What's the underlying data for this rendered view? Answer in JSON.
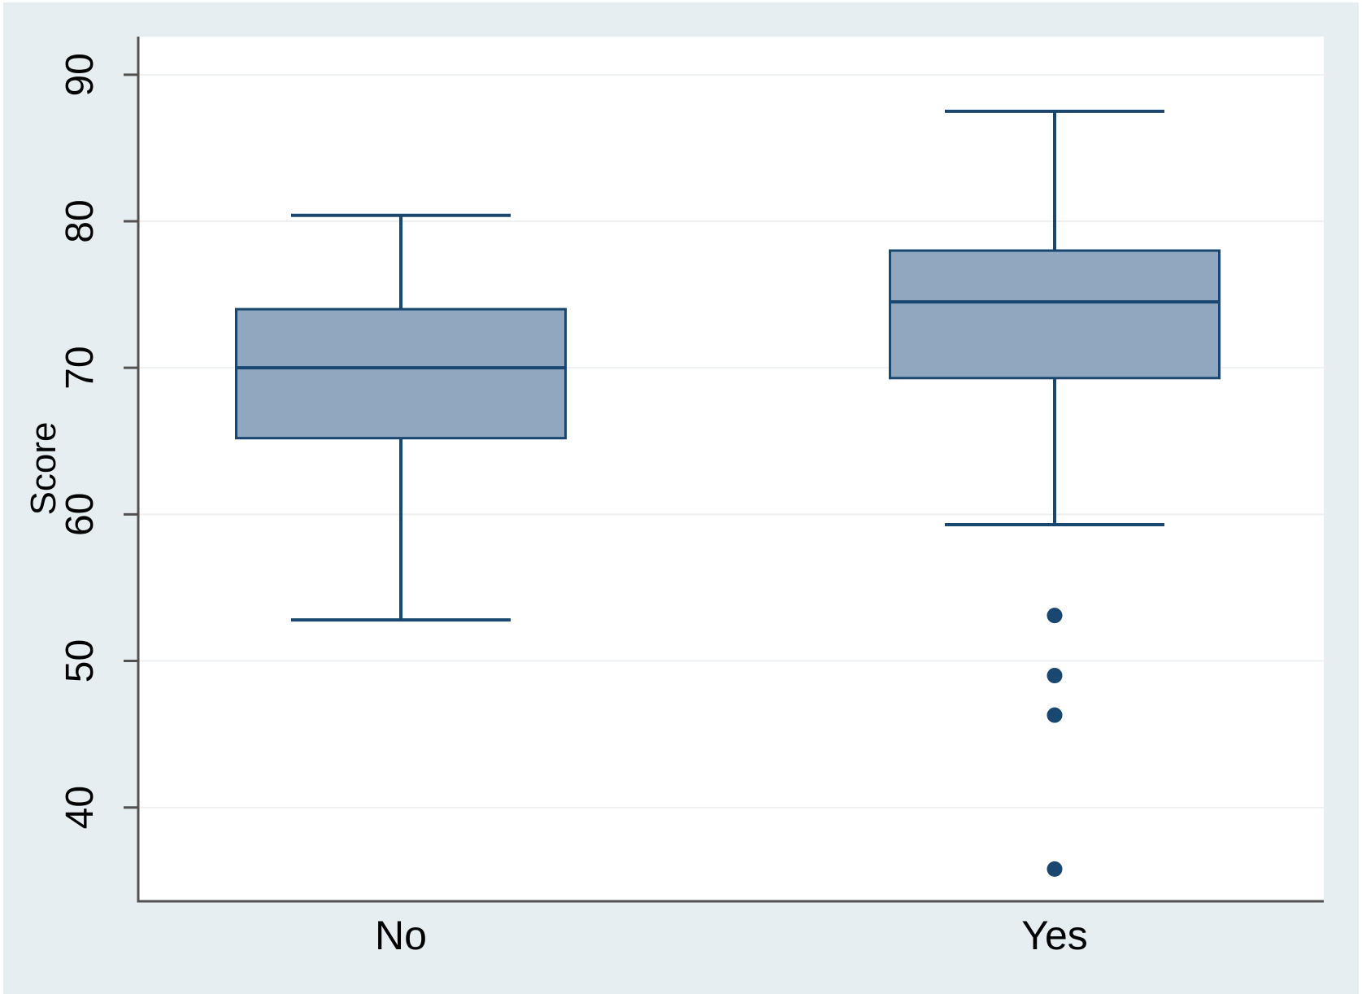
{
  "figure": {
    "bg_color": "#e7eef2",
    "plot_bg_color": "#ffffff"
  },
  "chart_data": {
    "type": "box",
    "title": "",
    "xlabel": "",
    "ylabel": "Score",
    "categories": [
      "No",
      "Yes"
    ],
    "yticks": [
      40,
      50,
      60,
      70,
      80,
      90
    ],
    "ylim": [
      33.6,
      92.6
    ],
    "grid": true,
    "legend": "none",
    "y_tick_label_angle": -90,
    "series": [
      {
        "category": "No",
        "lower_whisker": 52.8,
        "q1": 65.2,
        "median": 70.0,
        "q3": 74.0,
        "upper_whisker": 80.4,
        "outliers": []
      },
      {
        "category": "Yes",
        "lower_whisker": 59.3,
        "q1": 69.3,
        "median": 74.5,
        "q3": 78.0,
        "upper_whisker": 87.5,
        "outliers": [
          53.1,
          49.0,
          46.3,
          35.8
        ]
      }
    ],
    "colors": {
      "box_fill": "#8fa8c0",
      "box_line": "#1a476f",
      "median_line": "#1a476f",
      "whisker_line": "#1a476f",
      "outlier_dot": "#1a476f",
      "axis_line": "#515151",
      "gridline": "#edf1f3",
      "label_text": "#000000"
    }
  }
}
